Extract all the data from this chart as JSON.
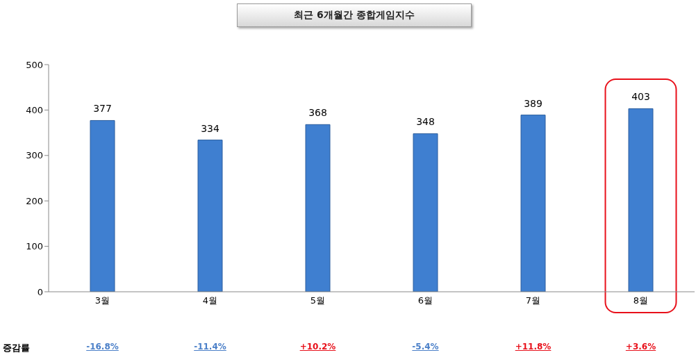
{
  "chart_data": {
    "type": "bar",
    "title": "최근 6개월간 종합게임지수",
    "categories": [
      "3월",
      "4월",
      "5월",
      "6월",
      "7월",
      "8월"
    ],
    "values": [
      377,
      334,
      368,
      348,
      389,
      403
    ],
    "color": "#3f7fd0",
    "ylim": [
      0,
      500
    ],
    "yticks": [
      0,
      100,
      200,
      300,
      400,
      500
    ],
    "grid": false,
    "data_labels": true,
    "annotations": [
      "증감률",
      "-16.8%",
      "-11.4%",
      "+10.2%",
      "-5.4%",
      "+11.8%",
      "+3.6%"
    ]
  }
}
